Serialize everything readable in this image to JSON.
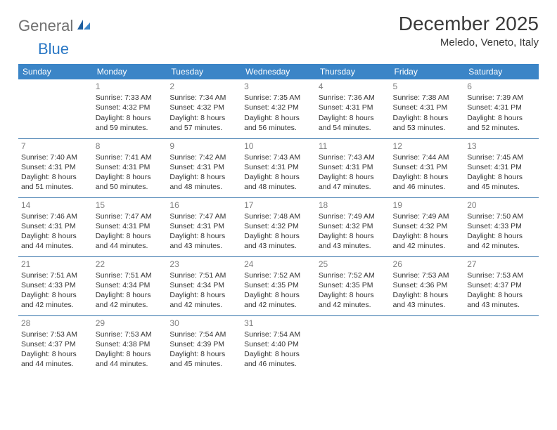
{
  "logo": {
    "word1": "General",
    "word2": "Blue"
  },
  "title": "December 2025",
  "location": "Meledo, Veneto, Italy",
  "colors": {
    "header_bg": "#3b85c7",
    "header_text": "#ffffff",
    "row_border": "#2f6fa8",
    "daynum": "#808080",
    "body_text": "#333333",
    "logo_gray": "#707070",
    "logo_blue": "#2b78c5",
    "background": "#ffffff"
  },
  "dayHeaders": [
    "Sunday",
    "Monday",
    "Tuesday",
    "Wednesday",
    "Thursday",
    "Friday",
    "Saturday"
  ],
  "weeks": [
    [
      {
        "num": "",
        "sunrise": "",
        "sunset": "",
        "daylight": ""
      },
      {
        "num": "1",
        "sunrise": "Sunrise: 7:33 AM",
        "sunset": "Sunset: 4:32 PM",
        "daylight": "Daylight: 8 hours and 59 minutes."
      },
      {
        "num": "2",
        "sunrise": "Sunrise: 7:34 AM",
        "sunset": "Sunset: 4:32 PM",
        "daylight": "Daylight: 8 hours and 57 minutes."
      },
      {
        "num": "3",
        "sunrise": "Sunrise: 7:35 AM",
        "sunset": "Sunset: 4:32 PM",
        "daylight": "Daylight: 8 hours and 56 minutes."
      },
      {
        "num": "4",
        "sunrise": "Sunrise: 7:36 AM",
        "sunset": "Sunset: 4:31 PM",
        "daylight": "Daylight: 8 hours and 54 minutes."
      },
      {
        "num": "5",
        "sunrise": "Sunrise: 7:38 AM",
        "sunset": "Sunset: 4:31 PM",
        "daylight": "Daylight: 8 hours and 53 minutes."
      },
      {
        "num": "6",
        "sunrise": "Sunrise: 7:39 AM",
        "sunset": "Sunset: 4:31 PM",
        "daylight": "Daylight: 8 hours and 52 minutes."
      }
    ],
    [
      {
        "num": "7",
        "sunrise": "Sunrise: 7:40 AM",
        "sunset": "Sunset: 4:31 PM",
        "daylight": "Daylight: 8 hours and 51 minutes."
      },
      {
        "num": "8",
        "sunrise": "Sunrise: 7:41 AM",
        "sunset": "Sunset: 4:31 PM",
        "daylight": "Daylight: 8 hours and 50 minutes."
      },
      {
        "num": "9",
        "sunrise": "Sunrise: 7:42 AM",
        "sunset": "Sunset: 4:31 PM",
        "daylight": "Daylight: 8 hours and 48 minutes."
      },
      {
        "num": "10",
        "sunrise": "Sunrise: 7:43 AM",
        "sunset": "Sunset: 4:31 PM",
        "daylight": "Daylight: 8 hours and 48 minutes."
      },
      {
        "num": "11",
        "sunrise": "Sunrise: 7:43 AM",
        "sunset": "Sunset: 4:31 PM",
        "daylight": "Daylight: 8 hours and 47 minutes."
      },
      {
        "num": "12",
        "sunrise": "Sunrise: 7:44 AM",
        "sunset": "Sunset: 4:31 PM",
        "daylight": "Daylight: 8 hours and 46 minutes."
      },
      {
        "num": "13",
        "sunrise": "Sunrise: 7:45 AM",
        "sunset": "Sunset: 4:31 PM",
        "daylight": "Daylight: 8 hours and 45 minutes."
      }
    ],
    [
      {
        "num": "14",
        "sunrise": "Sunrise: 7:46 AM",
        "sunset": "Sunset: 4:31 PM",
        "daylight": "Daylight: 8 hours and 44 minutes."
      },
      {
        "num": "15",
        "sunrise": "Sunrise: 7:47 AM",
        "sunset": "Sunset: 4:31 PM",
        "daylight": "Daylight: 8 hours and 44 minutes."
      },
      {
        "num": "16",
        "sunrise": "Sunrise: 7:47 AM",
        "sunset": "Sunset: 4:31 PM",
        "daylight": "Daylight: 8 hours and 43 minutes."
      },
      {
        "num": "17",
        "sunrise": "Sunrise: 7:48 AM",
        "sunset": "Sunset: 4:32 PM",
        "daylight": "Daylight: 8 hours and 43 minutes."
      },
      {
        "num": "18",
        "sunrise": "Sunrise: 7:49 AM",
        "sunset": "Sunset: 4:32 PM",
        "daylight": "Daylight: 8 hours and 43 minutes."
      },
      {
        "num": "19",
        "sunrise": "Sunrise: 7:49 AM",
        "sunset": "Sunset: 4:32 PM",
        "daylight": "Daylight: 8 hours and 42 minutes."
      },
      {
        "num": "20",
        "sunrise": "Sunrise: 7:50 AM",
        "sunset": "Sunset: 4:33 PM",
        "daylight": "Daylight: 8 hours and 42 minutes."
      }
    ],
    [
      {
        "num": "21",
        "sunrise": "Sunrise: 7:51 AM",
        "sunset": "Sunset: 4:33 PM",
        "daylight": "Daylight: 8 hours and 42 minutes."
      },
      {
        "num": "22",
        "sunrise": "Sunrise: 7:51 AM",
        "sunset": "Sunset: 4:34 PM",
        "daylight": "Daylight: 8 hours and 42 minutes."
      },
      {
        "num": "23",
        "sunrise": "Sunrise: 7:51 AM",
        "sunset": "Sunset: 4:34 PM",
        "daylight": "Daylight: 8 hours and 42 minutes."
      },
      {
        "num": "24",
        "sunrise": "Sunrise: 7:52 AM",
        "sunset": "Sunset: 4:35 PM",
        "daylight": "Daylight: 8 hours and 42 minutes."
      },
      {
        "num": "25",
        "sunrise": "Sunrise: 7:52 AM",
        "sunset": "Sunset: 4:35 PM",
        "daylight": "Daylight: 8 hours and 42 minutes."
      },
      {
        "num": "26",
        "sunrise": "Sunrise: 7:53 AM",
        "sunset": "Sunset: 4:36 PM",
        "daylight": "Daylight: 8 hours and 43 minutes."
      },
      {
        "num": "27",
        "sunrise": "Sunrise: 7:53 AM",
        "sunset": "Sunset: 4:37 PM",
        "daylight": "Daylight: 8 hours and 43 minutes."
      }
    ],
    [
      {
        "num": "28",
        "sunrise": "Sunrise: 7:53 AM",
        "sunset": "Sunset: 4:37 PM",
        "daylight": "Daylight: 8 hours and 44 minutes."
      },
      {
        "num": "29",
        "sunrise": "Sunrise: 7:53 AM",
        "sunset": "Sunset: 4:38 PM",
        "daylight": "Daylight: 8 hours and 44 minutes."
      },
      {
        "num": "30",
        "sunrise": "Sunrise: 7:54 AM",
        "sunset": "Sunset: 4:39 PM",
        "daylight": "Daylight: 8 hours and 45 minutes."
      },
      {
        "num": "31",
        "sunrise": "Sunrise: 7:54 AM",
        "sunset": "Sunset: 4:40 PM",
        "daylight": "Daylight: 8 hours and 46 minutes."
      },
      {
        "num": "",
        "sunrise": "",
        "sunset": "",
        "daylight": ""
      },
      {
        "num": "",
        "sunrise": "",
        "sunset": "",
        "daylight": ""
      },
      {
        "num": "",
        "sunrise": "",
        "sunset": "",
        "daylight": ""
      }
    ]
  ]
}
